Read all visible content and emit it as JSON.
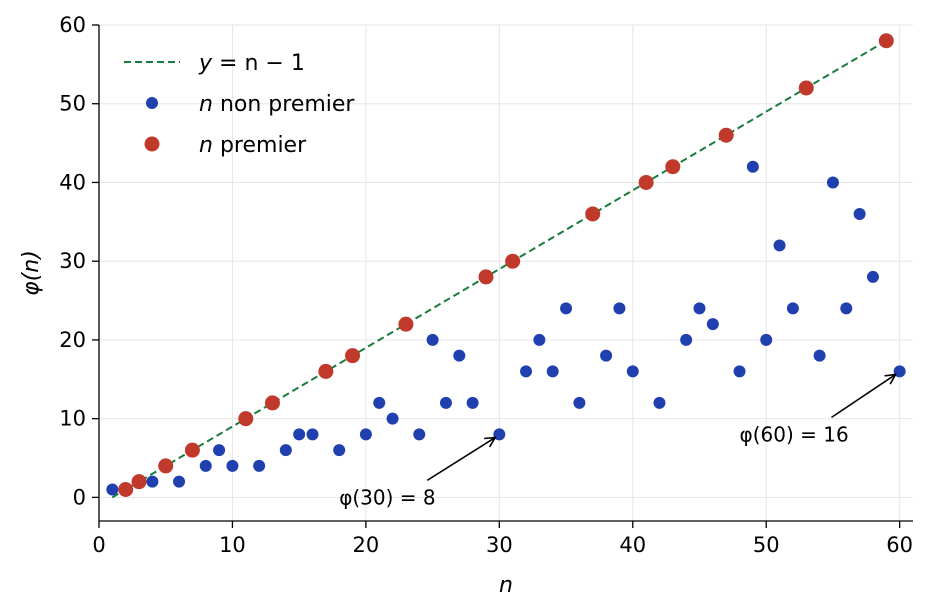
{
  "chart_data": {
    "type": "scatter",
    "title": "",
    "xlabel": "n",
    "ylabel": "φ(n)",
    "xlim": [
      0,
      61
    ],
    "ylim": [
      -3,
      60
    ],
    "xticks": [
      0,
      10,
      20,
      30,
      40,
      50,
      60
    ],
    "yticks": [
      0,
      10,
      20,
      30,
      40,
      50,
      60
    ],
    "grid": true,
    "legend_position": "top-left",
    "series": [
      {
        "name": "y = n − 1",
        "legend_var": "y",
        "legend_rest": " = n − 1",
        "kind": "line",
        "style": "dashed",
        "color": "#1a7a3c",
        "x": [
          1,
          59
        ],
        "y": [
          0,
          58
        ]
      },
      {
        "name": "n non premier",
        "legend_var": "n",
        "legend_rest": " non premier",
        "kind": "scatter",
        "color": "#2040b0",
        "x": [
          1,
          4,
          6,
          8,
          9,
          10,
          12,
          14,
          15,
          16,
          18,
          20,
          21,
          22,
          24,
          25,
          26,
          27,
          28,
          30,
          32,
          33,
          34,
          35,
          36,
          38,
          39,
          40,
          42,
          44,
          45,
          46,
          48,
          49,
          50,
          51,
          52,
          54,
          55,
          56,
          57,
          58,
          60
        ],
        "y": [
          1,
          2,
          2,
          4,
          6,
          4,
          4,
          6,
          8,
          8,
          6,
          8,
          12,
          10,
          8,
          20,
          12,
          18,
          12,
          8,
          16,
          20,
          16,
          24,
          12,
          18,
          24,
          16,
          12,
          20,
          24,
          22,
          16,
          42,
          20,
          32,
          24,
          18,
          40,
          24,
          36,
          28,
          16
        ]
      },
      {
        "name": "n premier",
        "legend_var": "n",
        "legend_rest": " premier",
        "kind": "scatter",
        "color": "#c0392b",
        "x": [
          2,
          3,
          5,
          7,
          11,
          13,
          17,
          19,
          23,
          29,
          31,
          37,
          41,
          43,
          47,
          53,
          59
        ],
        "y": [
          1,
          2,
          4,
          6,
          10,
          12,
          16,
          18,
          22,
          28,
          30,
          36,
          40,
          42,
          46,
          52,
          58
        ]
      }
    ],
    "annotations": [
      {
        "text": "φ(30) = 8",
        "point": [
          30,
          8
        ],
        "text_at": [
          18,
          0
        ]
      },
      {
        "text": "φ(60) = 16",
        "point": [
          60,
          16
        ],
        "text_at": [
          48,
          8
        ]
      }
    ]
  }
}
